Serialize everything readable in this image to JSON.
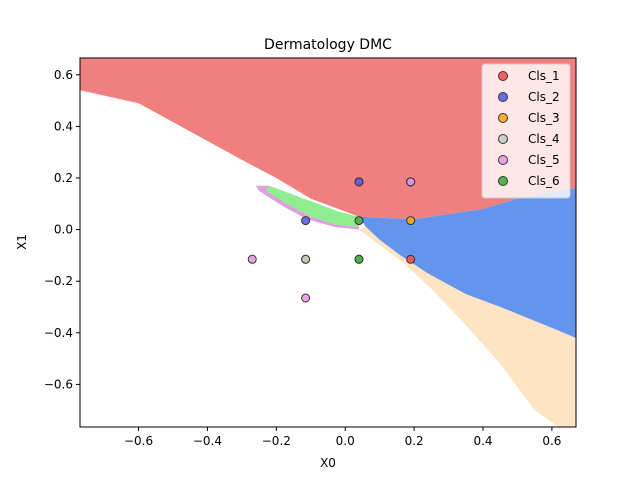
{
  "chart_data": {
    "type": "scatter",
    "title": "Dermatology DMC",
    "xlabel": "X0",
    "ylabel": "X1",
    "xlim": [
      -0.77,
      0.67
    ],
    "ylim": [
      -0.765,
      0.665
    ],
    "x_ticks": [
      -0.6,
      -0.4,
      -0.2,
      0.0,
      0.2,
      0.4,
      0.6
    ],
    "y_ticks": [
      -0.6,
      -0.4,
      -0.2,
      0.0,
      0.2,
      0.4,
      0.6
    ],
    "x_tick_labels": [
      "−0.6",
      "−0.4",
      "−0.2",
      "0.0",
      "0.2",
      "0.4",
      "0.6"
    ],
    "y_tick_labels": [
      "−0.6",
      "−0.4",
      "−0.2",
      "0.0",
      "0.2",
      "0.4",
      "0.6"
    ],
    "grid": false,
    "legend_position": "top-right",
    "series": [
      {
        "name": "Cls_1",
        "color": "#ef5350",
        "points": [
          [
            0.04,
            0.185
          ],
          [
            0.19,
            -0.115
          ],
          [
            0.19,
            0.185
          ]
        ]
      },
      {
        "name": "Cls_2",
        "color": "#5c5ce6",
        "points": [
          [
            -0.115,
            0.035
          ],
          [
            0.04,
            0.185
          ],
          [
            0.19,
            0.185
          ]
        ]
      },
      {
        "name": "Cls_3",
        "color": "#f5a623",
        "points": [
          [
            0.19,
            0.035
          ],
          [
            -0.115,
            -0.115
          ]
        ]
      },
      {
        "name": "Cls_4",
        "color": "#c8c8c8",
        "points": [
          [
            -0.115,
            -0.115
          ],
          [
            0.04,
            -0.115
          ]
        ]
      },
      {
        "name": "Cls_5",
        "color": "#e59ae5",
        "points": [
          [
            -0.27,
            -0.115
          ],
          [
            -0.115,
            -0.265
          ],
          [
            0.19,
            0.185
          ]
        ]
      },
      {
        "name": "Cls_6",
        "color": "#3fae3f",
        "points": [
          [
            0.04,
            0.035
          ],
          [
            0.04,
            -0.115
          ]
        ]
      }
    ],
    "decision_regions": [
      {
        "class": "Cls_1",
        "color": "#f08080",
        "polygon": [
          [
            -0.77,
            0.665
          ],
          [
            0.67,
            0.665
          ],
          [
            0.67,
            0.16
          ],
          [
            0.5,
            0.12
          ],
          [
            0.4,
            0.08
          ],
          [
            0.2,
            0.04
          ],
          [
            0.04,
            0.05
          ],
          [
            0.0,
            0.07
          ],
          [
            -0.1,
            0.12
          ],
          [
            -0.2,
            0.2
          ],
          [
            -0.3,
            0.27
          ],
          [
            -0.45,
            0.38
          ],
          [
            -0.6,
            0.49
          ],
          [
            -0.77,
            0.54
          ]
        ]
      },
      {
        "class": "Cls_2",
        "color": "#6495ed",
        "polygon": [
          [
            0.04,
            0.05
          ],
          [
            0.2,
            0.04
          ],
          [
            0.4,
            0.08
          ],
          [
            0.5,
            0.12
          ],
          [
            0.67,
            0.16
          ],
          [
            0.67,
            -0.42
          ],
          [
            0.58,
            -0.37
          ],
          [
            0.45,
            -0.3
          ],
          [
            0.35,
            -0.25
          ],
          [
            0.24,
            -0.17
          ],
          [
            0.16,
            -0.1
          ],
          [
            0.1,
            -0.04
          ],
          [
            0.06,
            0.01
          ]
        ]
      },
      {
        "class": "Cls_3",
        "color": "#ffe4c4",
        "polygon": [
          [
            0.04,
            0.0
          ],
          [
            0.06,
            0.01
          ],
          [
            0.1,
            -0.04
          ],
          [
            0.16,
            -0.1
          ],
          [
            0.24,
            -0.17
          ],
          [
            0.35,
            -0.25
          ],
          [
            0.45,
            -0.3
          ],
          [
            0.58,
            -0.37
          ],
          [
            0.67,
            -0.42
          ],
          [
            0.67,
            -0.765
          ],
          [
            0.62,
            -0.765
          ],
          [
            0.55,
            -0.7
          ],
          [
            0.45,
            -0.52
          ],
          [
            0.35,
            -0.37
          ],
          [
            0.25,
            -0.23
          ],
          [
            0.17,
            -0.13
          ],
          [
            0.1,
            -0.06
          ]
        ]
      },
      {
        "class": "Cls_6",
        "color": "#90ee90",
        "polygon": [
          [
            -0.22,
            0.17
          ],
          [
            -0.12,
            0.12
          ],
          [
            -0.02,
            0.07
          ],
          [
            0.04,
            0.05
          ],
          [
            0.04,
            0.01
          ],
          [
            -0.03,
            0.02
          ],
          [
            -0.1,
            0.05
          ],
          [
            -0.17,
            0.1
          ],
          [
            -0.23,
            0.15
          ]
        ]
      },
      {
        "class": "Cls_5",
        "color": "#dda0dd",
        "polygon": [
          [
            -0.26,
            0.17
          ],
          [
            -0.22,
            0.17
          ],
          [
            -0.23,
            0.15
          ],
          [
            -0.17,
            0.1
          ],
          [
            -0.1,
            0.05
          ],
          [
            -0.03,
            0.02
          ],
          [
            0.04,
            0.01
          ],
          [
            0.04,
            0.0
          ],
          [
            -0.03,
            0.01
          ],
          [
            -0.11,
            0.04
          ],
          [
            -0.18,
            0.09
          ],
          [
            -0.25,
            0.15
          ]
        ]
      }
    ]
  }
}
